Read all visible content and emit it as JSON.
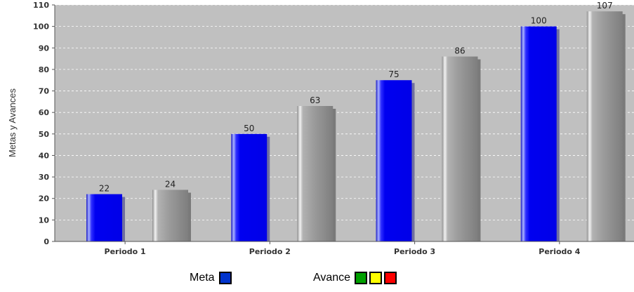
{
  "chart_data": {
    "type": "bar",
    "title": "",
    "xlabel": "",
    "ylabel": "Metas y Avances",
    "ylim": [
      0,
      110
    ],
    "yticks": [
      0,
      10,
      20,
      30,
      40,
      50,
      60,
      70,
      80,
      90,
      100,
      110
    ],
    "categories": [
      "Periodo 1",
      "Periodo 2",
      "Periodo 3",
      "Periodo 4"
    ],
    "series": [
      {
        "name": "Meta",
        "color": "#0000f0",
        "values": [
          22,
          50,
          75,
          100
        ]
      },
      {
        "name": "Avance",
        "color": "#9a9a9a",
        "values": [
          24,
          63,
          86,
          107
        ]
      }
    ],
    "grid": true,
    "background": "#c0c0c0"
  },
  "legend": {
    "meta": {
      "label": "Meta",
      "swatch_color": "#0033cc"
    },
    "avance": {
      "label": "Avance",
      "swatch_colors": [
        "#00a000",
        "#ffff00",
        "#ff0000"
      ]
    }
  }
}
